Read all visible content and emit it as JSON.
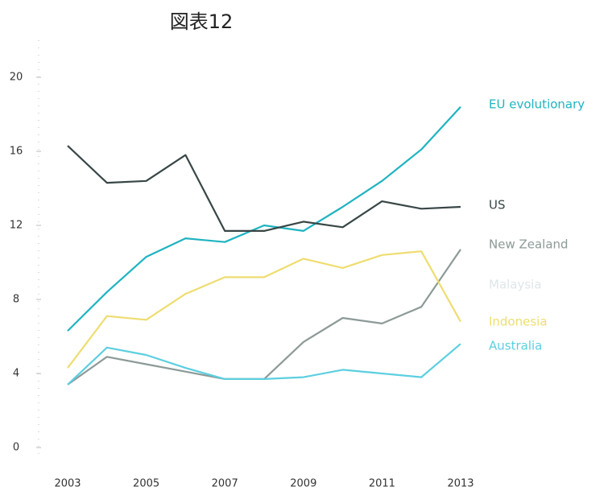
{
  "chart_data": {
    "type": "line",
    "title": "図表12",
    "x": [
      2003,
      2004,
      2005,
      2006,
      2007,
      2008,
      2009,
      2010,
      2011,
      2012,
      2013
    ],
    "xlim": [
      2003,
      2013
    ],
    "xticks": [
      2003,
      2005,
      2007,
      2009,
      2011,
      2013
    ],
    "ylim": [
      0,
      22
    ],
    "yticks": [
      0,
      4,
      8,
      12,
      16,
      20
    ],
    "series": [
      {
        "name": "EU evolutionary",
        "color": "#1fb3c0",
        "values": [
          6.3,
          8.4,
          10.3,
          11.3,
          11.1,
          12.0,
          11.7,
          13.0,
          14.4,
          16.1,
          18.4
        ]
      },
      {
        "name": "US",
        "color": "#384646",
        "values": [
          16.3,
          14.3,
          14.4,
          15.8,
          11.7,
          11.7,
          12.2,
          11.9,
          13.3,
          12.9,
          13.0
        ]
      },
      {
        "name": "New Zealand",
        "color": "#8c9a98",
        "values": [
          3.4,
          4.9,
          4.5,
          4.1,
          3.7,
          3.7,
          5.7,
          7.0,
          6.7,
          7.6,
          10.7
        ]
      },
      {
        "name": "Malaysia",
        "color": "#dfe6e8",
        "values": [
          null,
          null,
          null,
          null,
          null,
          null,
          null,
          null,
          null,
          null,
          null
        ]
      },
      {
        "name": "Indonesia",
        "color": "#eedd70",
        "values": [
          4.3,
          7.1,
          6.9,
          8.3,
          9.2,
          9.2,
          10.2,
          9.7,
          10.4,
          10.6,
          6.8
        ]
      },
      {
        "name": "Australia",
        "color": "#5ccfe0",
        "values": [
          3.4,
          5.4,
          5.0,
          4.3,
          3.7,
          3.7,
          3.8,
          4.2,
          4.0,
          3.8,
          5.6
        ]
      }
    ]
  }
}
